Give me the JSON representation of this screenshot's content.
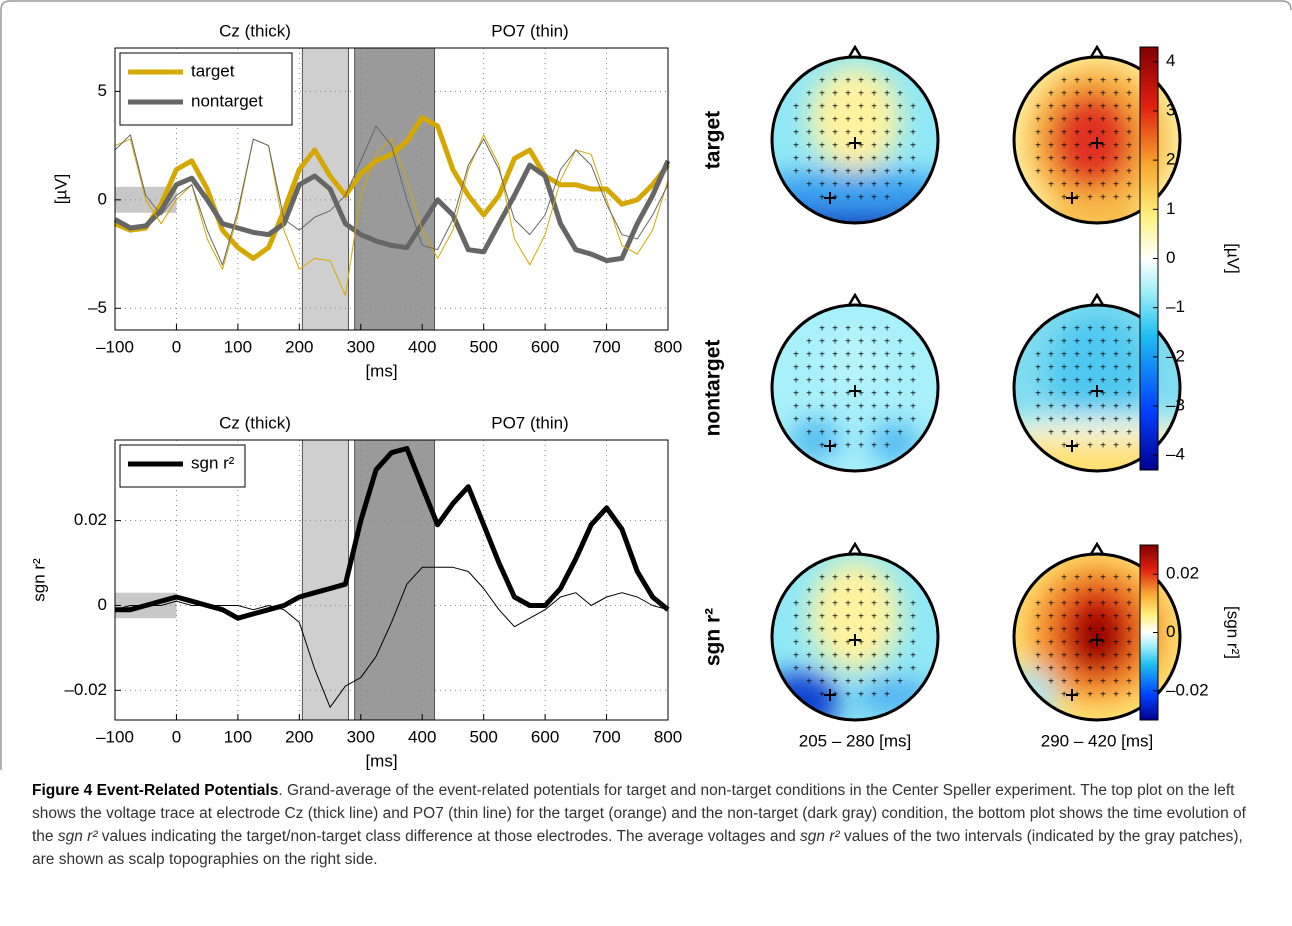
{
  "chart_data": [
    {
      "type": "line",
      "titles": [
        "Cz (thick)",
        "PO7 (thin)"
      ],
      "xlabel": "[ms]",
      "ylabel": "[µV]",
      "xlim": [
        -100,
        800
      ],
      "ylim": [
        -6,
        7
      ],
      "xticks": [
        {
          "value": -100,
          "label": "–100"
        },
        0,
        100,
        200,
        300,
        400,
        500,
        600,
        700,
        800
      ],
      "yticks": [
        {
          "value": -5,
          "label": "–5"
        },
        0,
        5
      ],
      "grid": true,
      "shaded": [
        {
          "x": [
            -100,
            0
          ],
          "y": [
            -0.6,
            0.6
          ],
          "color": "#c8c8c8"
        },
        {
          "x": [
            205,
            280
          ],
          "color": "#cfcfcf"
        },
        {
          "x": [
            290,
            420
          ],
          "color": "#9a9a9a"
        }
      ],
      "x": [
        -100,
        -75,
        -50,
        -25,
        0,
        25,
        50,
        75,
        100,
        125,
        150,
        175,
        200,
        225,
        250,
        275,
        300,
        325,
        350,
        375,
        400,
        425,
        450,
        475,
        500,
        525,
        550,
        575,
        600,
        625,
        650,
        675,
        700,
        725,
        750,
        775,
        800
      ],
      "series": [
        {
          "name": "target",
          "color": "#d4a800",
          "width": 5,
          "values": [
            -1.1,
            -1.4,
            -1.3,
            -0.2,
            1.4,
            1.8,
            0.5,
            -1.4,
            -2.2,
            -2.7,
            -2.2,
            -0.5,
            1.4,
            2.3,
            1.1,
            0.2,
            1.2,
            1.8,
            2.1,
            2.7,
            3.8,
            3.4,
            1.4,
            0.2,
            -0.7,
            0.2,
            1.9,
            2.3,
            1.1,
            0.7,
            0.7,
            0.5,
            0.5,
            -0.2,
            0,
            0.7,
            1.6
          ]
        },
        {
          "name": "nontarget",
          "color": "#666666",
          "width": 5,
          "values": [
            -0.9,
            -1.3,
            -1.2,
            -0.5,
            0.7,
            1.0,
            0,
            -1.1,
            -1.3,
            -1.5,
            -1.6,
            -1.1,
            0.7,
            1.1,
            0.5,
            -1.1,
            -1.6,
            -1.9,
            -2.1,
            -2.2,
            -1.1,
            0,
            -0.7,
            -2.3,
            -2.4,
            -1.1,
            0.2,
            1.6,
            1.1,
            -1.1,
            -2.3,
            -2.5,
            -2.8,
            -2.7,
            -1.1,
            0.2,
            1.8
          ]
        },
        {
          "color": "#d4a800",
          "width": 1,
          "values": [
            2.5,
            2.8,
            0,
            -1.1,
            0,
            0.7,
            -1.8,
            -3.2,
            -0.7,
            2.8,
            2.5,
            -1.4,
            -3.2,
            -2.7,
            -2.8,
            -4.4,
            0.2,
            2.1,
            2.8,
            0.9,
            -1.4,
            -2.7,
            -1.4,
            1.4,
            3.0,
            1.6,
            -1.8,
            -3.0,
            -1.6,
            0.9,
            2.3,
            2.1,
            0,
            -2.1,
            -2.5,
            -1.4,
            0.9
          ]
        },
        {
          "color": "#666666",
          "width": 1,
          "values": [
            2.3,
            3.0,
            0.2,
            -0.7,
            0.2,
            0.7,
            -1.4,
            -3.0,
            -0.5,
            2.8,
            2.5,
            -0.9,
            -1.4,
            -0.8,
            -0.5,
            0.2,
            1.8,
            3.4,
            2.5,
            0,
            -2.1,
            -2.3,
            -0.9,
            1.6,
            2.8,
            1.4,
            -0.9,
            -1.6,
            -0.7,
            1.4,
            2.3,
            1.6,
            -0.2,
            -1.6,
            -1.8,
            -0.7,
            0.7
          ]
        }
      ]
    },
    {
      "type": "line",
      "titles": [
        "Cz (thick)",
        "PO7 (thin)"
      ],
      "xlabel": "[ms]",
      "ylabel": "sgn r²",
      "xlim": [
        -100,
        800
      ],
      "ylim": [
        -0.027,
        0.039
      ],
      "xticks": [
        {
          "value": -100,
          "label": "–100"
        },
        0,
        100,
        200,
        300,
        400,
        500,
        600,
        700,
        800
      ],
      "yticks": [
        {
          "value": -0.02,
          "label": "–0.02"
        },
        0,
        0.02
      ],
      "grid": true,
      "shaded": [
        {
          "x": [
            -100,
            0
          ],
          "y": [
            -0.003,
            0.003
          ],
          "color": "#c8c8c8"
        },
        {
          "x": [
            205,
            280
          ],
          "color": "#cfcfcf"
        },
        {
          "x": [
            290,
            420
          ],
          "color": "#9a9a9a"
        }
      ],
      "x": [
        -100,
        -75,
        -50,
        -25,
        0,
        25,
        50,
        75,
        100,
        125,
        150,
        175,
        200,
        225,
        250,
        275,
        300,
        325,
        350,
        375,
        400,
        425,
        450,
        475,
        500,
        525,
        550,
        575,
        600,
        625,
        650,
        675,
        700,
        725,
        750,
        775,
        800
      ],
      "series": [
        {
          "name": "sgn r²",
          "color": "#000000",
          "width": 5,
          "values": [
            -0.001,
            -0.001,
            0,
            0.001,
            0.002,
            0.001,
            0,
            -0.001,
            -0.003,
            -0.002,
            -0.001,
            0,
            0.002,
            0.003,
            0.004,
            0.005,
            0.02,
            0.032,
            0.036,
            0.037,
            0.028,
            0.019,
            0.024,
            0.028,
            0.019,
            0.01,
            0.002,
            0,
            0,
            0.004,
            0.011,
            0.019,
            0.023,
            0.018,
            0.008,
            0.002,
            -0.001
          ]
        },
        {
          "color": "#000000",
          "width": 1,
          "values": [
            -0.001,
            0,
            0,
            0,
            0.001,
            0,
            0,
            0,
            0,
            -0.001,
            0,
            -0.001,
            -0.004,
            -0.015,
            -0.024,
            -0.019,
            -0.017,
            -0.012,
            -0.004,
            0.005,
            0.009,
            0.009,
            0.009,
            0.008,
            0.004,
            -0.001,
            -0.005,
            -0.003,
            -0.001,
            0.002,
            0.003,
            0,
            0.002,
            0.003,
            0.002,
            0,
            -0.001
          ]
        }
      ]
    },
    {
      "type": "topomap",
      "rows": [
        "target",
        "nontarget",
        "sgn r²"
      ],
      "row_colors": [
        "#d4a800",
        "#777777",
        "#000000"
      ],
      "columns": [
        "205 – 280 [ms]",
        "290 – 420 [ms]"
      ],
      "colorbars": [
        {
          "label": "[µV]",
          "lim": [
            -4.3,
            4.3
          ],
          "ticks": [
            {
              "value": -4,
              "label": "–4"
            },
            {
              "value": -3,
              "label": "–3"
            },
            {
              "value": -2,
              "label": "–2"
            },
            {
              "value": -1,
              "label": "–1"
            },
            0,
            1,
            2,
            3,
            4
          ]
        },
        {
          "label": "[sgn r²]",
          "lim": [
            -0.03,
            0.03
          ],
          "ticks": [
            {
              "value": -0.02,
              "label": "–0.02"
            },
            0,
            0.02
          ]
        }
      ]
    }
  ],
  "caption": {
    "label": "Figure 4 Event-Related Potentials",
    "segments": [
      {
        "text": ". Grand-average of the event-related potentials for target and non-target conditions in the Center Speller experiment. The top plot on the left shows the voltage trace at electrode Cz (thick line) and PO7 (thin line) for the target (orange) and the non-target (dark gray) condition, the bottom plot shows the time evolution of the ",
        "italic": false
      },
      {
        "text": "sgn r²",
        "italic": true
      },
      {
        "text": " values indicating the target/non-target class difference at those electrodes. The average voltages and ",
        "italic": false
      },
      {
        "text": "sgn r²",
        "italic": true
      },
      {
        "text": " values of the two intervals (indicated by the gray patches), are shown as scalp topographies on the right side.",
        "italic": false
      }
    ]
  }
}
